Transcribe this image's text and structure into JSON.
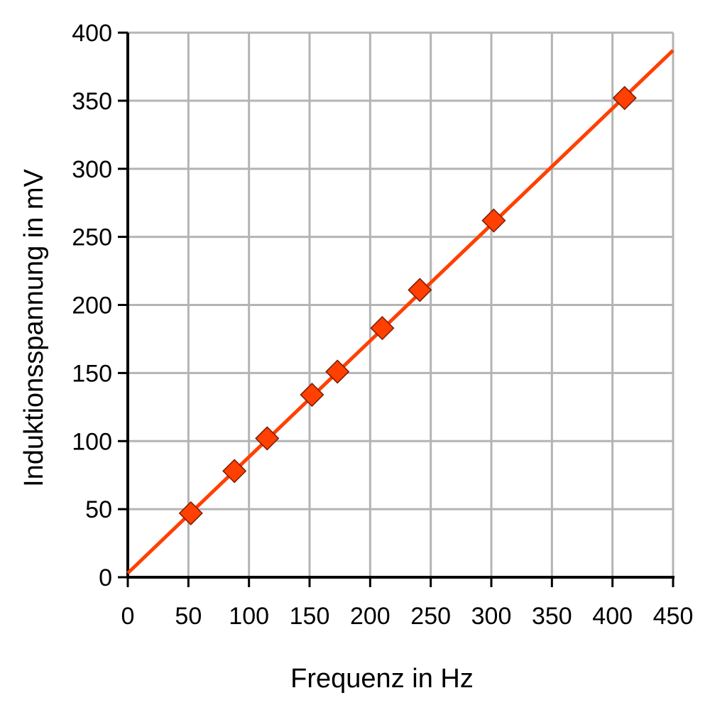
{
  "chart_data": {
    "type": "scatter",
    "title": "",
    "xlabel": "Frequenz in Hz",
    "ylabel": "Induktionsspannung in mV",
    "xlim": [
      0,
      450
    ],
    "ylim": [
      0,
      400
    ],
    "xticks": [
      0,
      50,
      100,
      150,
      200,
      250,
      300,
      350,
      400,
      450
    ],
    "yticks": [
      0,
      50,
      100,
      150,
      200,
      250,
      300,
      350,
      400
    ],
    "xtick_labels": [
      "0",
      "50",
      "100",
      "150",
      "200",
      "250",
      "300",
      "350",
      "400",
      "450"
    ],
    "ytick_labels": [
      "0",
      "50",
      "100",
      "150",
      "200",
      "250",
      "300",
      "350",
      "400"
    ],
    "grid": true,
    "legend": "none",
    "series": [
      {
        "marker": "diamond",
        "points": [
          {
            "x": 52,
            "y": 47
          },
          {
            "x": 88,
            "y": 78
          },
          {
            "x": 115,
            "y": 102
          },
          {
            "x": 152,
            "y": 134
          },
          {
            "x": 173,
            "y": 151
          },
          {
            "x": 210,
            "y": 183
          },
          {
            "x": 241,
            "y": 211
          },
          {
            "x": 302,
            "y": 262
          },
          {
            "x": 410,
            "y": 352
          }
        ]
      }
    ],
    "fit_line": {
      "x": [
        0,
        450
      ],
      "y": [
        3,
        387
      ]
    },
    "colors": {
      "series": "#ff4000",
      "grid": "#b4b4b4",
      "axis": "#000000"
    }
  }
}
